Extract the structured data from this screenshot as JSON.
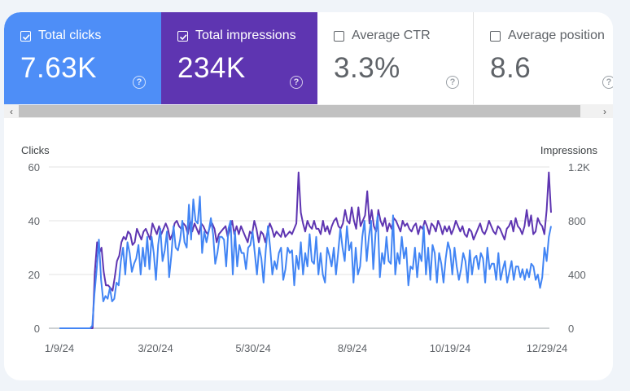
{
  "metrics": [
    {
      "label": "Total clicks",
      "value": "7.63K",
      "checked": true,
      "color": "#4e8ef7"
    },
    {
      "label": "Total impressions",
      "value": "234K",
      "checked": true,
      "color": "#5e35b1"
    },
    {
      "label": "Average CTR",
      "value": "3.3%",
      "checked": false,
      "color": "#ffffff"
    },
    {
      "label": "Average position",
      "value": "8.6",
      "checked": false,
      "color": "#ffffff"
    }
  ],
  "help_glyph": "?",
  "scroll": {
    "left_arrow": "‹",
    "right_arrow": "›"
  },
  "chart_data": {
    "type": "line",
    "left_axis_title": "Clicks",
    "right_axis_title": "Impressions",
    "left_ticks": [
      "0",
      "20",
      "40",
      "60"
    ],
    "right_ticks": [
      "0",
      "400",
      "800",
      "1.2K"
    ],
    "left_range": [
      0,
      60
    ],
    "right_range": [
      0,
      1200
    ],
    "x_ticks": [
      "1/9/24",
      "3/20/24",
      "5/30/24",
      "8/9/24",
      "10/19/24",
      "12/29/24"
    ],
    "grid": true,
    "series": [
      {
        "name": "Clicks",
        "axis": "left",
        "color": "#4285f4",
        "values": [
          0,
          0,
          0,
          0,
          0,
          0,
          0,
          0,
          0,
          0,
          0,
          0,
          0,
          0,
          0,
          1,
          13,
          22,
          33,
          18,
          10,
          12,
          11,
          15,
          10,
          11,
          17,
          16,
          25,
          30,
          20,
          32,
          28,
          21,
          24,
          26,
          31,
          20,
          30,
          23,
          34,
          22,
          34,
          28,
          18,
          31,
          37,
          25,
          29,
          36,
          19,
          27,
          38,
          30,
          29,
          33,
          40,
          32,
          30,
          46,
          33,
          48,
          40,
          39,
          49,
          28,
          36,
          32,
          36,
          41,
          35,
          24,
          28,
          34,
          34,
          33,
          23,
          37,
          40,
          20,
          36,
          23,
          31,
          28,
          28,
          22,
          30,
          31,
          36,
          28,
          20,
          30,
          26,
          17,
          29,
          38,
          30,
          20,
          25,
          22,
          28,
          30,
          18,
          22,
          30,
          28,
          29,
          16,
          27,
          22,
          32,
          20,
          28,
          23,
          35,
          25,
          24,
          34,
          20,
          28,
          20,
          17,
          30,
          27,
          23,
          30,
          20,
          28,
          37,
          30,
          25,
          38,
          29,
          32,
          17,
          30,
          20,
          23,
          34,
          40,
          25,
          34,
          40,
          22,
          35,
          42,
          19,
          28,
          24,
          34,
          25,
          24,
          42,
          20,
          28,
          24,
          34,
          26,
          30,
          16,
          23,
          22,
          30,
          19,
          28,
          25,
          38,
          20,
          30,
          18,
          31,
          28,
          17,
          28,
          24,
          17,
          26,
          32,
          29,
          20,
          30,
          23,
          18,
          22,
          28,
          25,
          17,
          29,
          20,
          26,
          27,
          22,
          28,
          26,
          17,
          30,
          22,
          24,
          24,
          18,
          28,
          18,
          22,
          25,
          17,
          21,
          25,
          18,
          23,
          23,
          19,
          22,
          18,
          22,
          19,
          24,
          23,
          18,
          20,
          15,
          19,
          30,
          25,
          34,
          38
        ]
      },
      {
        "name": "Impressions",
        "axis": "right",
        "color": "#5e35b1",
        "values": [
          0,
          0,
          0,
          0,
          0,
          0,
          0,
          0,
          0,
          0,
          0,
          0,
          0,
          0,
          0,
          0,
          420,
          640,
          560,
          600,
          420,
          320,
          320,
          300,
          280,
          380,
          500,
          540,
          640,
          680,
          660,
          720,
          700,
          620,
          640,
          740,
          700,
          660,
          720,
          740,
          700,
          660,
          780,
          740,
          700,
          760,
          700,
          740,
          780,
          740,
          660,
          700,
          780,
          800,
          760,
          740,
          780,
          760,
          700,
          800,
          720,
          780,
          740,
          700,
          780,
          760,
          720,
          700,
          760,
          780,
          740,
          640,
          700,
          720,
          740,
          760,
          680,
          740,
          800,
          700,
          760,
          700,
          760,
          720,
          680,
          640,
          720,
          700,
          800,
          740,
          640,
          720,
          700,
          640,
          720,
          780,
          740,
          680,
          720,
          700,
          680,
          740,
          680,
          700,
          720,
          700,
          740,
          780,
          1160,
          860,
          780,
          720,
          800,
          760,
          740,
          800,
          740,
          740,
          700,
          800,
          720,
          760,
          700,
          760,
          800,
          820,
          760,
          740,
          780,
          880,
          800,
          780,
          900,
          800,
          740,
          900,
          760,
          800,
          840,
          1020,
          780,
          880,
          760,
          720,
          880,
          800,
          760,
          820,
          720,
          780,
          740,
          820,
          800,
          760,
          720,
          800,
          760,
          780,
          740,
          720,
          760,
          780,
          700,
          760,
          740,
          800,
          760,
          700,
          780,
          760,
          720,
          800,
          760,
          700,
          760,
          720,
          760,
          700,
          740,
          800,
          760,
          720,
          760,
          700,
          680,
          740,
          720,
          660,
          700,
          740,
          780,
          720,
          700,
          740,
          800,
          760,
          720,
          700,
          760,
          740,
          700,
          660,
          740,
          760,
          800,
          720,
          820,
          760,
          740,
          700,
          760,
          880,
          760,
          840,
          700,
          720,
          820,
          780,
          760,
          700,
          880,
          1160,
          860
        ]
      }
    ]
  }
}
